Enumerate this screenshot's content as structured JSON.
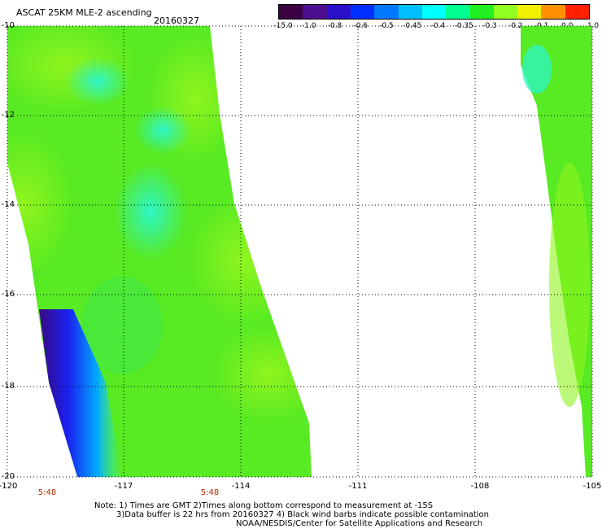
{
  "header": {
    "title": "ASCAT 25KM MLE-2 ascending",
    "date": "20160327"
  },
  "colorbar": {
    "labels": [
      "-15.0",
      "-1.0",
      "-0.8",
      "-0.6",
      "-0.5",
      "-0.45",
      "-0.4",
      "-0.35",
      "-0.3",
      "-0.2",
      "-0.1",
      "0.0",
      "1.0"
    ],
    "colors": [
      "#3a0040",
      "#4a1090",
      "#2a10c8",
      "#0030ff",
      "#0078ff",
      "#00c0ff",
      "#00ffff",
      "#00ff90",
      "#20f020",
      "#90ff20",
      "#f0f000",
      "#ff9000",
      "#ff2000"
    ]
  },
  "map": {
    "lat_labels": [
      "-10",
      "-12",
      "-14",
      "-16",
      "-18",
      "-20"
    ],
    "lon_labels": [
      "-120",
      "-117",
      "-114",
      "-111",
      "-108",
      "-105"
    ],
    "time_labels": [
      "5:48",
      "5:48"
    ]
  },
  "footer": {
    "line1": "Note: 1) Times are GMT 2)Times along bottom correspond to measurement at -15S",
    "line2": "3)Data buffer is 22 hrs from 20160327 4) Black wind barbs indicate possible contamination",
    "line3": "NOAA/NESDIS/Center for Satellite Applications and Research"
  },
  "colors": {
    "swath_base": "#4ee820",
    "swath_light": "#8cf51e",
    "swath_cyan": "#2ef5c8",
    "swath_blue": "#1020f0",
    "swath_purple": "#3a1090",
    "grid": "#000000"
  }
}
